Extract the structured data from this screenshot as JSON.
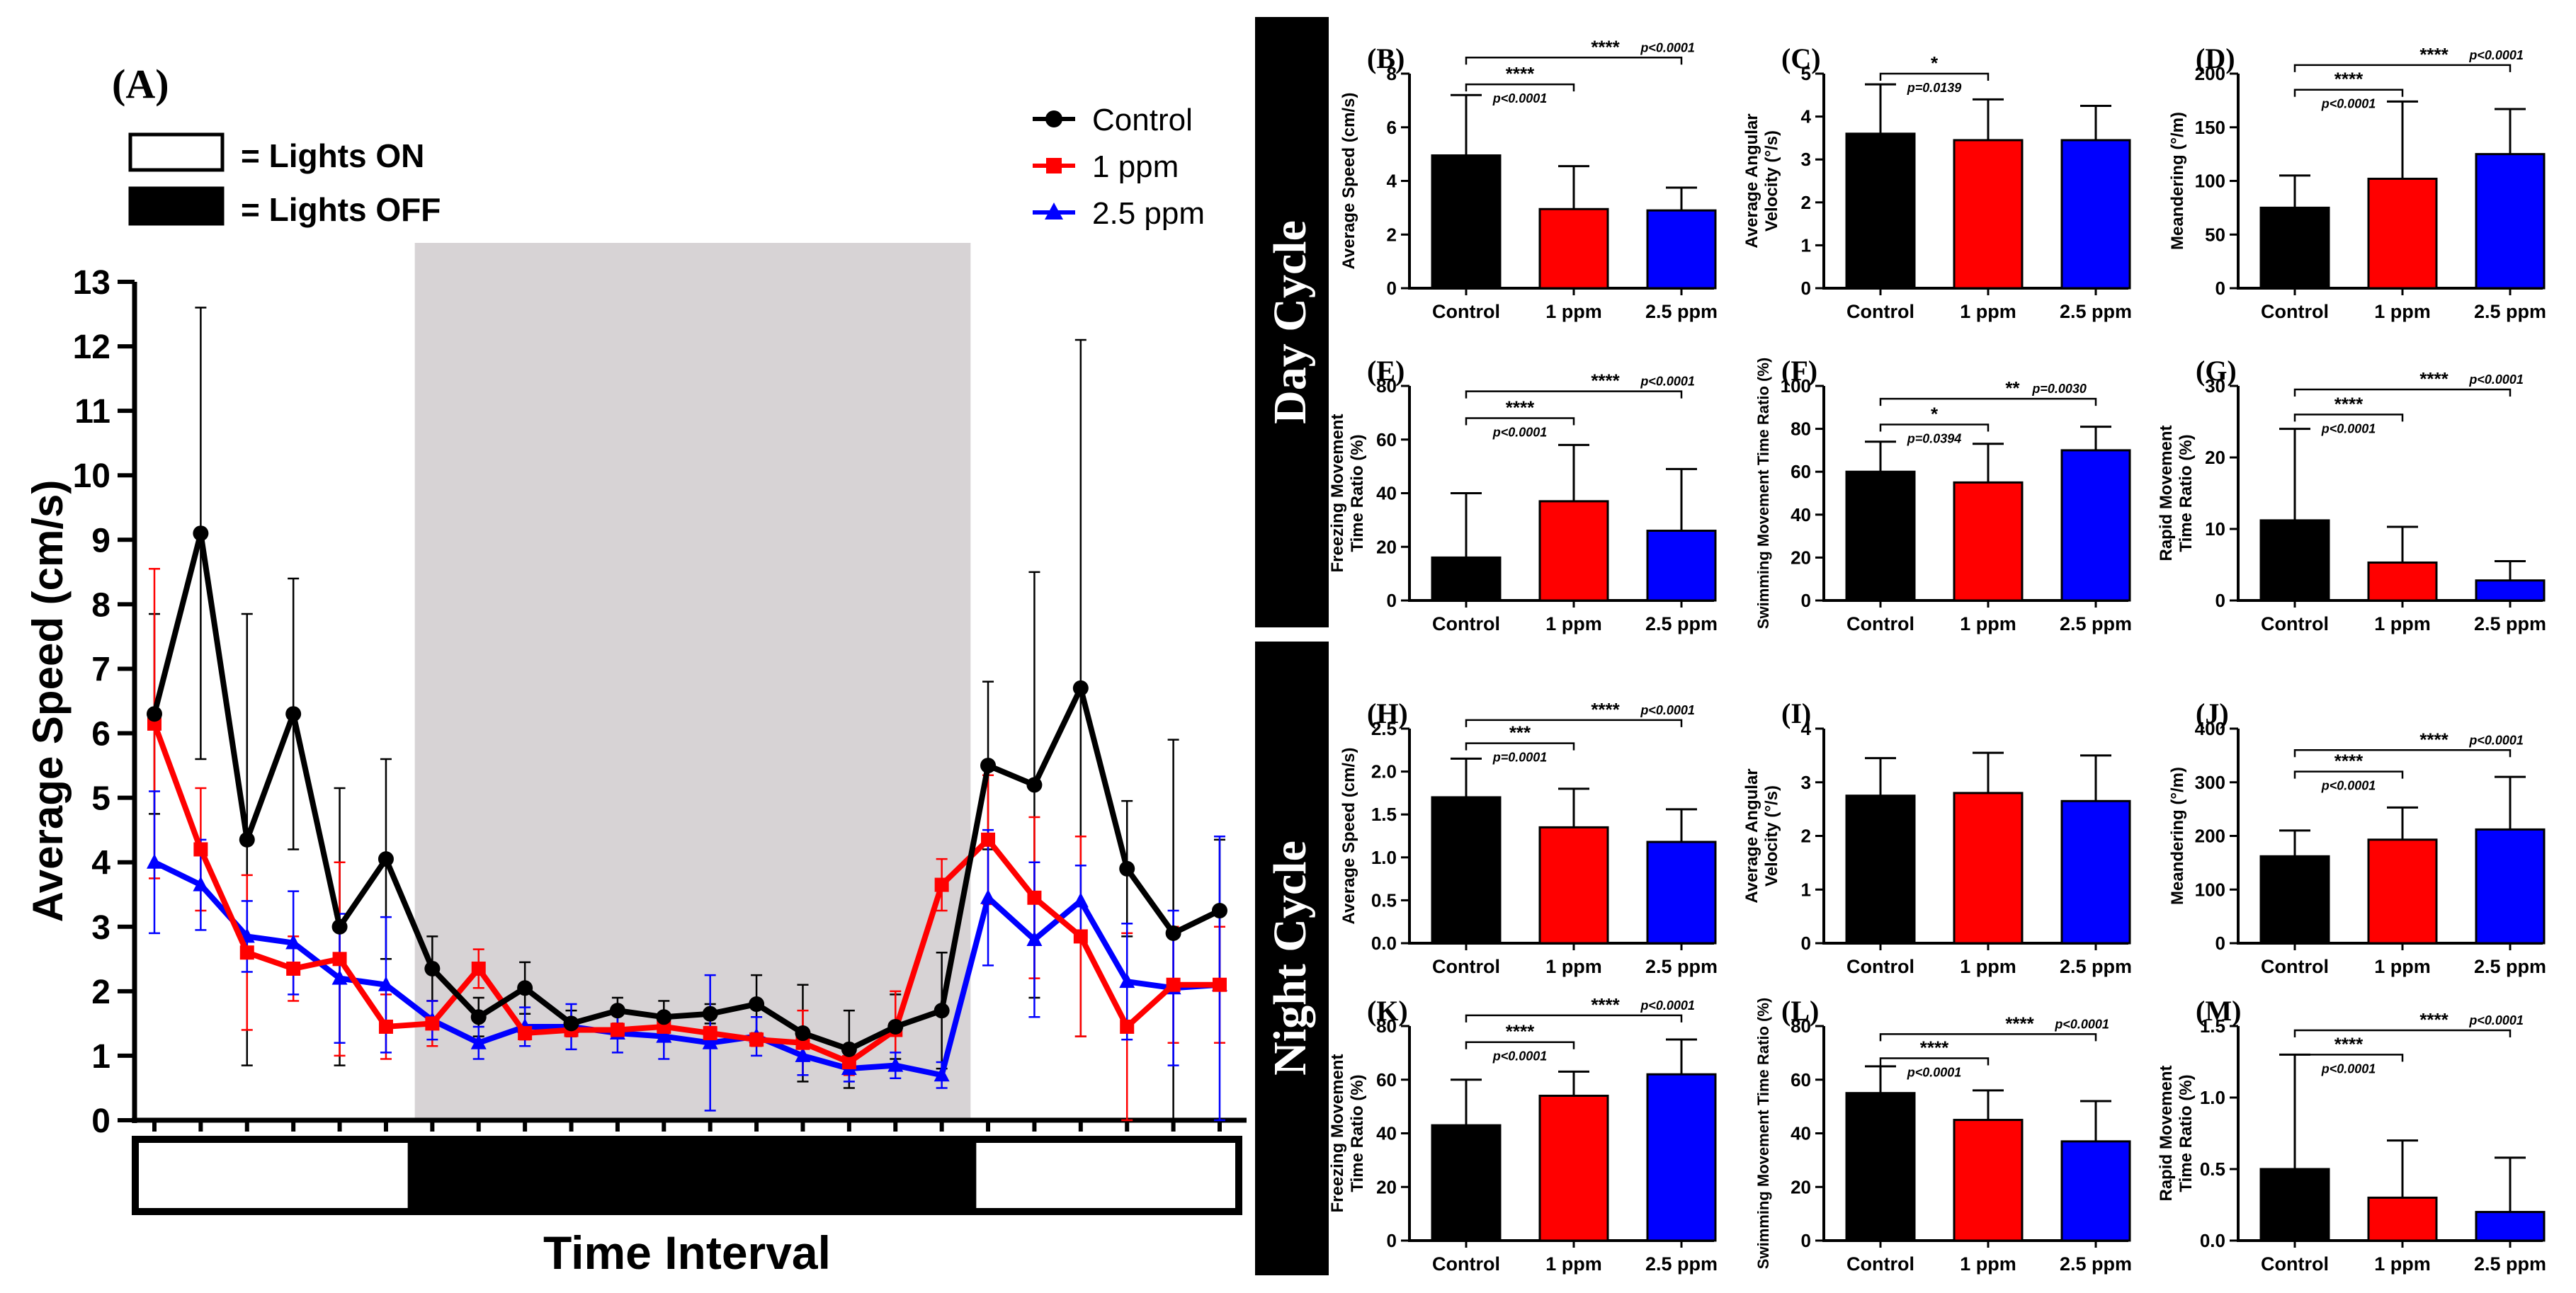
{
  "colors": {
    "control": "#000000",
    "ppm1": "#ff0000",
    "ppm25": "#0000ff",
    "shade": "#d7d3d5"
  },
  "panel_a": {
    "label": "(A)",
    "box_legend": [
      {
        "text": "= Lights ON",
        "fill": "#ffffff"
      },
      {
        "text": "= Lights OFF",
        "fill": "#000000"
      }
    ],
    "series_legend": [
      "Control",
      "1 ppm",
      "2.5 ppm"
    ]
  },
  "rows": {
    "day": "Day Cycle",
    "night": "Night Cycle"
  },
  "chart_data": [
    {
      "id": "A",
      "type": "line",
      "title": "",
      "xlabel": "Time Interval",
      "ylabel": "Average Speed (cm/s)",
      "ylim": [
        0,
        13
      ],
      "yticks": [
        "0",
        "1",
        "2",
        "3",
        "4",
        "5",
        "6",
        "7",
        "8",
        "9",
        "10",
        "11",
        "12",
        "13"
      ],
      "x_count": 24,
      "lights_off_range": [
        6,
        18
      ],
      "series": [
        {
          "name": "Control",
          "color": "#000000",
          "values": [
            6.3,
            9.1,
            4.35,
            6.3,
            3.0,
            4.05,
            2.35,
            1.6,
            2.05,
            1.5,
            1.7,
            1.6,
            1.65,
            1.8,
            1.35,
            1.1,
            1.45,
            1.7,
            5.5,
            5.2,
            6.7,
            3.9,
            2.9,
            3.25
          ],
          "errors": [
            1.55,
            3.5,
            3.5,
            2.1,
            2.15,
            1.55,
            0.5,
            0.3,
            0.4,
            0.2,
            0.2,
            0.25,
            0.15,
            0.45,
            0.75,
            0.6,
            0.5,
            0.9,
            1.3,
            3.3,
            5.4,
            1.05,
            3.0,
            1.1
          ]
        },
        {
          "name": "1 ppm",
          "color": "#ff0000",
          "values": [
            6.15,
            4.2,
            2.6,
            2.35,
            2.5,
            1.45,
            1.5,
            2.35,
            1.35,
            1.4,
            1.4,
            1.45,
            1.35,
            1.25,
            1.2,
            0.9,
            1.4,
            3.65,
            4.35,
            3.45,
            2.85,
            1.45,
            2.1,
            2.1
          ],
          "errors": [
            2.4,
            0.95,
            1.2,
            0.5,
            1.5,
            0.5,
            0.35,
            0.3,
            0.1,
            0.1,
            0.1,
            0.1,
            0.1,
            0.1,
            0.5,
            0.2,
            0.6,
            0.4,
            1.0,
            1.25,
            1.55,
            1.45,
            0.9,
            0.9
          ]
        },
        {
          "name": "2.5 ppm",
          "color": "#0000ff",
          "values": [
            4.0,
            3.65,
            2.85,
            2.75,
            2.2,
            2.1,
            1.55,
            1.2,
            1.45,
            1.45,
            1.35,
            1.3,
            1.2,
            1.3,
            1.0,
            0.8,
            0.85,
            0.7,
            3.45,
            2.8,
            3.4,
            2.15,
            2.05,
            2.1
          ],
          "errors": [
            1.1,
            0.7,
            0.55,
            0.8,
            1.0,
            1.05,
            0.3,
            0.25,
            0.3,
            0.35,
            0.3,
            0.35,
            1.05,
            0.3,
            0.3,
            0.2,
            0.2,
            0.2,
            1.05,
            1.2,
            0.55,
            0.9,
            1.2,
            2.3
          ]
        }
      ]
    },
    {
      "id": "B",
      "label": "(B)",
      "type": "bar",
      "ylabel": "Average Speed (cm/s)",
      "ylim": [
        0,
        8
      ],
      "yticks": [
        "0",
        "2",
        "4",
        "6",
        "8"
      ],
      "categories": [
        "Control",
        "1 ppm",
        "2.5 ppm"
      ],
      "values": [
        4.95,
        2.95,
        2.9
      ],
      "errors": [
        2.25,
        1.6,
        0.85
      ],
      "annotations": [
        {
          "from": 0,
          "to": 2,
          "stars": "****",
          "p": "p<0.0001",
          "p_pos": "right",
          "y": 8.6
        },
        {
          "from": 0,
          "to": 1,
          "stars": "****",
          "p": "p<0.0001",
          "p_pos": "below",
          "y": 7.6
        }
      ]
    },
    {
      "id": "C",
      "label": "(C)",
      "type": "bar",
      "ylabel": "Average Angular Velocity (°/s)",
      "ylim": [
        0,
        5
      ],
      "yticks": [
        "0",
        "1",
        "2",
        "3",
        "4",
        "5"
      ],
      "categories": [
        "Control",
        "1 ppm",
        "2.5 ppm"
      ],
      "values": [
        3.6,
        3.45,
        3.45
      ],
      "errors": [
        1.15,
        0.95,
        0.8
      ],
      "annotations": [
        {
          "from": 0,
          "to": 1,
          "stars": "*",
          "p": "p=0.0139",
          "p_pos": "below",
          "y": 5.0
        }
      ]
    },
    {
      "id": "D",
      "label": "(D)",
      "type": "bar",
      "ylabel": "Meandering (°/m)",
      "ylim": [
        0,
        200
      ],
      "yticks": [
        "0",
        "50",
        "100",
        "150",
        "200"
      ],
      "categories": [
        "Control",
        "1 ppm",
        "2.5 ppm"
      ],
      "values": [
        75,
        102,
        125
      ],
      "errors": [
        30,
        72,
        42
      ],
      "annotations": [
        {
          "from": 0,
          "to": 2,
          "stars": "****",
          "p": "p<0.0001",
          "p_pos": "right",
          "y": 208
        },
        {
          "from": 0,
          "to": 1,
          "stars": "****",
          "p": "p<0.0001",
          "p_pos": "below",
          "y": 185
        }
      ]
    },
    {
      "id": "E",
      "label": "(E)",
      "type": "bar",
      "ylabel": "Freezing Movement Time Ratio (%)",
      "ylim": [
        0,
        80
      ],
      "yticks": [
        "0",
        "20",
        "40",
        "60",
        "80"
      ],
      "categories": [
        "Control",
        "1 ppm",
        "2.5 ppm"
      ],
      "values": [
        16,
        37,
        26
      ],
      "errors": [
        24,
        21,
        23
      ],
      "annotations": [
        {
          "from": 0,
          "to": 2,
          "stars": "****",
          "p": "p<0.0001",
          "p_pos": "right",
          "y": 78
        },
        {
          "from": 0,
          "to": 1,
          "stars": "****",
          "p": "p<0.0001",
          "p_pos": "below",
          "y": 68
        }
      ]
    },
    {
      "id": "F",
      "label": "(F)",
      "type": "bar",
      "ylabel": "Swimming Movement Time Ratio (%)",
      "ylim": [
        0,
        100
      ],
      "yticks": [
        "0",
        "20",
        "40",
        "60",
        "80",
        "100"
      ],
      "categories": [
        "Control",
        "1 ppm",
        "2.5 ppm"
      ],
      "values": [
        60,
        55,
        70
      ],
      "errors": [
        14,
        18,
        11
      ],
      "annotations": [
        {
          "from": 0,
          "to": 2,
          "stars": "**",
          "p": "p=0.0030",
          "p_pos": "right",
          "y": 94
        },
        {
          "from": 0,
          "to": 1,
          "stars": "*",
          "p": "p=0.0394",
          "p_pos": "below",
          "y": 82
        }
      ]
    },
    {
      "id": "G",
      "label": "(G)",
      "type": "bar",
      "ylabel": "Rapid Movement Time Ratio (%)",
      "ylim": [
        0,
        30
      ],
      "yticks": [
        "0",
        "10",
        "20",
        "30"
      ],
      "categories": [
        "Control",
        "1 ppm",
        "2.5 ppm"
      ],
      "values": [
        11.2,
        5.3,
        2.8
      ],
      "errors": [
        12.8,
        5.0,
        2.7
      ],
      "annotations": [
        {
          "from": 0,
          "to": 2,
          "stars": "****",
          "p": "p<0.0001",
          "p_pos": "right",
          "y": 29.5
        },
        {
          "from": 0,
          "to": 1,
          "stars": "****",
          "p": "p<0.0001",
          "p_pos": "below",
          "y": 26
        }
      ]
    },
    {
      "id": "H",
      "label": "(H)",
      "type": "bar",
      "ylabel": "Average Speed (cm/s)",
      "ylim": [
        0,
        2.5
      ],
      "yticks": [
        "0.0",
        "0.5",
        "1.0",
        "1.5",
        "2.0",
        "2.5"
      ],
      "categories": [
        "Control",
        "1 ppm",
        "2.5 ppm"
      ],
      "values": [
        1.7,
        1.35,
        1.18
      ],
      "errors": [
        0.45,
        0.45,
        0.38
      ],
      "annotations": [
        {
          "from": 0,
          "to": 2,
          "stars": "****",
          "p": "p<0.0001",
          "p_pos": "right",
          "y": 2.6
        },
        {
          "from": 0,
          "to": 1,
          "stars": "***",
          "p": "p=0.0001",
          "p_pos": "below",
          "y": 2.33
        }
      ]
    },
    {
      "id": "I",
      "label": "(I)",
      "type": "bar",
      "ylabel": "Average Angular Velocity (°/s)",
      "ylim": [
        0,
        4
      ],
      "yticks": [
        "0",
        "1",
        "2",
        "3",
        "4"
      ],
      "categories": [
        "Control",
        "1 ppm",
        "2.5 ppm"
      ],
      "values": [
        2.75,
        2.8,
        2.65
      ],
      "errors": [
        0.7,
        0.75,
        0.85
      ],
      "annotations": []
    },
    {
      "id": "J",
      "label": "(J)",
      "type": "bar",
      "ylabel": "Meandering (°/m)",
      "ylim": [
        0,
        400
      ],
      "yticks": [
        "0",
        "100",
        "200",
        "300",
        "400"
      ],
      "categories": [
        "Control",
        "1 ppm",
        "2.5 ppm"
      ],
      "values": [
        162,
        193,
        212
      ],
      "errors": [
        48,
        60,
        98
      ],
      "annotations": [
        {
          "from": 0,
          "to": 2,
          "stars": "****",
          "p": "p<0.0001",
          "p_pos": "right",
          "y": 360
        },
        {
          "from": 0,
          "to": 1,
          "stars": "****",
          "p": "p<0.0001",
          "p_pos": "below",
          "y": 320
        }
      ]
    },
    {
      "id": "K",
      "label": "(K)",
      "type": "bar",
      "ylabel": "Freezing Movement Time Ratio (%)",
      "ylim": [
        0,
        80
      ],
      "yticks": [
        "0",
        "20",
        "40",
        "60",
        "80"
      ],
      "categories": [
        "Control",
        "1 ppm",
        "2.5 ppm"
      ],
      "values": [
        43,
        54,
        62
      ],
      "errors": [
        17,
        9,
        13
      ],
      "annotations": [
        {
          "from": 0,
          "to": 2,
          "stars": "****",
          "p": "p<0.0001",
          "p_pos": "right",
          "y": 84
        },
        {
          "from": 0,
          "to": 1,
          "stars": "****",
          "p": "p<0.0001",
          "p_pos": "below",
          "y": 74
        }
      ]
    },
    {
      "id": "L",
      "label": "(L)",
      "type": "bar",
      "ylabel": "Swimming Movement Time Ratio (%)",
      "ylim": [
        0,
        80
      ],
      "yticks": [
        "0",
        "20",
        "40",
        "60",
        "80"
      ],
      "categories": [
        "Control",
        "1 ppm",
        "2.5 ppm"
      ],
      "values": [
        55,
        45,
        37
      ],
      "errors": [
        10,
        11,
        15
      ],
      "annotations": [
        {
          "from": 0,
          "to": 2,
          "stars": "****",
          "p": "p<0.0001",
          "p_pos": "right",
          "y": 77
        },
        {
          "from": 0,
          "to": 1,
          "stars": "****",
          "p": "p<0.0001",
          "p_pos": "below",
          "y": 68
        }
      ]
    },
    {
      "id": "M",
      "label": "(M)",
      "type": "bar",
      "ylabel": "Rapid Movement Time Ratio (%)",
      "ylim": [
        0,
        1.5
      ],
      "yticks": [
        "0.0",
        "0.5",
        "1.0",
        "1.5"
      ],
      "categories": [
        "Control",
        "1 ppm",
        "2.5 ppm"
      ],
      "values": [
        0.5,
        0.3,
        0.2
      ],
      "errors": [
        0.8,
        0.4,
        0.38
      ],
      "annotations": [
        {
          "from": 0,
          "to": 2,
          "stars": "****",
          "p": "p<0.0001",
          "p_pos": "right",
          "y": 1.47
        },
        {
          "from": 0,
          "to": 1,
          "stars": "****",
          "p": "p<0.0001",
          "p_pos": "below",
          "y": 1.3
        }
      ]
    }
  ]
}
